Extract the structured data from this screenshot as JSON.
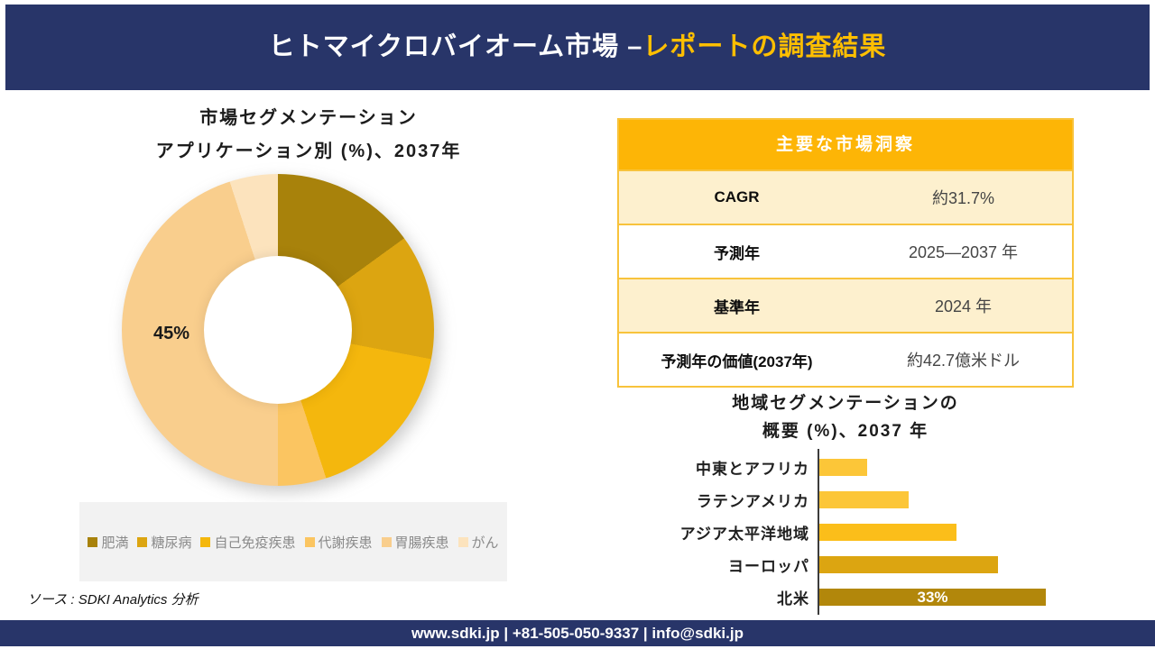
{
  "header": {
    "title_main": "ヒトマイクロバイオーム市場 –",
    "title_accent": "レポートの調査結果",
    "bg_color": "#283569",
    "accent_color": "#FFBF00"
  },
  "donut_section": {
    "title_line1": "市場セグメンテーション",
    "title_line2": "アプリケーション別 (%)、2037年",
    "center_label": "45%"
  },
  "insights_table": {
    "header": "主要な市場洞察",
    "rows": [
      {
        "label": "CAGR",
        "value": "約31.7%"
      },
      {
        "label": "予測年",
        "value": "2025—2037 年"
      },
      {
        "label": "基準年",
        "value": "2024 年"
      },
      {
        "label": "予測年の価値(2037年)",
        "value": "約42.7億米ドル"
      }
    ],
    "header_bg": "#FDB506",
    "alt_row_bg": "#FDF0CE",
    "border_color": "#F8C33C"
  },
  "bar_section": {
    "title_line1": "地域セグメンテーションの",
    "title_line2": "概要 (%)、2037 年"
  },
  "source_note": "ソース : SDKI Analytics 分析",
  "footer": {
    "text": "www.sdki.jp | +81-505-050-9337 | info@sdki.jp",
    "bg_color": "#283569"
  },
  "chart_data": [
    {
      "type": "pie",
      "subtype": "donut",
      "title": "市場セグメンテーション アプリケーション別 (%)、2037年",
      "categories": [
        "肥満",
        "糖尿病",
        "自己免疫疾患",
        "代謝疾患",
        "胃腸疾患",
        "がん"
      ],
      "values": [
        15,
        13,
        17,
        5,
        45,
        5
      ],
      "colors": [
        "#A8820B",
        "#DCA511",
        "#F4B70D",
        "#FBC561",
        "#F9CE8D",
        "#FCE3BD"
      ],
      "data_labels": [
        "",
        "",
        "",
        "",
        "45%",
        ""
      ],
      "legend_position": "bottom"
    },
    {
      "type": "bar",
      "orientation": "horizontal",
      "title": "地域セグメンテーションの概要 (%)、2037 年",
      "categories": [
        "中東とアフリカ",
        "ラテンアメリカ",
        "アジア太平洋地域",
        "ヨーロッパ",
        "北米"
      ],
      "values": [
        7,
        13,
        20,
        26,
        33
      ],
      "colors": [
        "#FCC638",
        "#FCC638",
        "#FBBE1A",
        "#DCA511",
        "#B2870B"
      ],
      "data_labels": [
        "",
        "",
        "",
        "",
        "33%"
      ],
      "xlim": [
        0,
        33
      ],
      "grid": false
    }
  ]
}
